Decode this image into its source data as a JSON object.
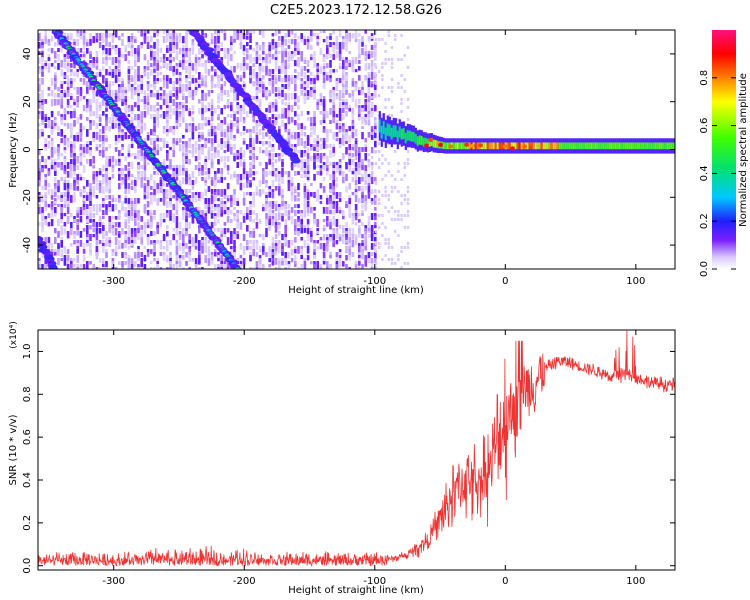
{
  "figure_title": "C2E5.2023.172.12.58.G26",
  "chart_data": [
    {
      "type": "heatmap",
      "title": "",
      "xlabel": "Height of straight line (km)",
      "ylabel": "Frequency (Hz)",
      "xlim": [
        -358,
        130
      ],
      "ylim": [
        -50,
        50
      ],
      "xticks": [
        -300,
        -200,
        -100,
        0,
        100
      ],
      "yticks": [
        -40,
        -20,
        0,
        20,
        40
      ],
      "colorbar": {
        "label": "Normalized spectral amplitude",
        "range": [
          0,
          1
        ],
        "ticks": [
          "0.0",
          "0.2",
          "0.4",
          "0.6",
          "0.8"
        ],
        "tick_values": [
          0.0,
          0.2,
          0.4,
          0.6,
          0.8
        ]
      },
      "features": {
        "noise_region_x": [
          -358,
          -100
        ],
        "sparse_noise_x": [
          -100,
          -75
        ],
        "diagonal_tracks": [
          {
            "from": [
              -345,
              50
            ],
            "to": [
              -205,
              -50
            ]
          },
          {
            "from": [
              -240,
              50
            ],
            "to": [
              -160,
              -5
            ]
          },
          {
            "from": [
              -358,
              -37
            ],
            "to": [
              -345,
              -50
            ]
          }
        ],
        "carrier_band": {
          "x": [
            -97,
            130
          ],
          "center_hz": 1.5,
          "peak_x": [
            -30,
            40
          ],
          "onset_center_hz": 8
        }
      }
    },
    {
      "type": "line",
      "title": "",
      "xlabel": "Height of straight line (km)",
      "ylabel": "SNR (10 * v/v)",
      "y_multiplier": "(x10⁴)",
      "xlim": [
        -358,
        130
      ],
      "ylim": [
        -0.02,
        1.1
      ],
      "xticks": [
        -300,
        -200,
        -100,
        0,
        100
      ],
      "yticks": [
        "0.0",
        "0.2",
        "0.4",
        "0.6",
        "0.8",
        "1.0"
      ],
      "ytick_values": [
        0.0,
        0.2,
        0.4,
        0.6,
        0.8,
        1.0
      ],
      "color": "#ee3333",
      "series": [
        {
          "x": [
            -358,
            -300,
            -250,
            -200,
            -150,
            -110,
            -90,
            -75,
            -60,
            -50,
            -40,
            -30,
            -20,
            -10,
            -5,
            0,
            10,
            20,
            30,
            40,
            50,
            60,
            70,
            80,
            90,
            100,
            110,
            120,
            130
          ],
          "y": [
            0.02,
            0.025,
            0.03,
            0.025,
            0.02,
            0.02,
            0.03,
            0.05,
            0.12,
            0.22,
            0.35,
            0.42,
            0.4,
            0.5,
            0.62,
            0.72,
            0.8,
            0.86,
            0.92,
            0.96,
            0.95,
            0.93,
            0.91,
            0.89,
            0.9,
            0.88,
            0.86,
            0.85,
            0.85
          ]
        }
      ]
    }
  ]
}
